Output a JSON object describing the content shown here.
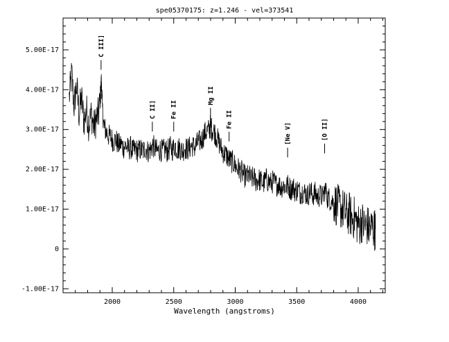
{
  "chart_data": {
    "type": "line",
    "title": "spe05370175: z=1.246 - vel=373541",
    "xlabel": "Wavelength (angstroms)",
    "ylabel": "",
    "xlim": [
      1600,
      4220
    ],
    "ylim": [
      -1.1e-17,
      5.8e-17
    ],
    "x_ticks": [
      2000,
      2500,
      3000,
      3500,
      4000
    ],
    "x_tick_labels": [
      "2000",
      "2500",
      "3000",
      "3500",
      "4000"
    ],
    "x_minor_step": 100,
    "y_ticks": [
      -1e-17,
      0,
      1e-17,
      2e-17,
      3e-17,
      4e-17,
      5e-17
    ],
    "y_tick_labels": [
      "-1.00E-17",
      "0",
      "1.00E-17",
      "2.00E-17",
      "3.00E-17",
      "4.00E-17",
      "5.00E-17"
    ],
    "y_minor_step": 2e-18,
    "grid": false,
    "series": [
      {
        "points": [
          [
            1650,
            3.8e-17
          ],
          [
            1670,
            4.4e-17
          ],
          [
            1690,
            3.6e-17
          ],
          [
            1710,
            4.1e-17
          ],
          [
            1730,
            3.4e-17
          ],
          [
            1750,
            3.8e-17
          ],
          [
            1770,
            3.2e-17
          ],
          [
            1790,
            3.5e-17
          ],
          [
            1810,
            3.1e-17
          ],
          [
            1830,
            3.4e-17
          ],
          [
            1850,
            3.05e-17
          ],
          [
            1870,
            3.25e-17
          ],
          [
            1890,
            3.4e-17
          ],
          [
            1905,
            3.9e-17
          ],
          [
            1912,
            4.25e-17
          ],
          [
            1920,
            3.5e-17
          ],
          [
            1935,
            3.05e-17
          ],
          [
            1950,
            2.95e-17
          ],
          [
            1970,
            2.85e-17
          ],
          [
            1990,
            2.8e-17
          ],
          [
            2010,
            2.7e-17
          ],
          [
            2030,
            2.75e-17
          ],
          [
            2050,
            2.6e-17
          ],
          [
            2070,
            2.65e-17
          ],
          [
            2090,
            2.55e-17
          ],
          [
            2110,
            2.6e-17
          ],
          [
            2130,
            2.5e-17
          ],
          [
            2150,
            2.55e-17
          ],
          [
            2170,
            2.45e-17
          ],
          [
            2190,
            2.5e-17
          ],
          [
            2210,
            2.45e-17
          ],
          [
            2230,
            2.5e-17
          ],
          [
            2250,
            2.45e-17
          ],
          [
            2270,
            2.55e-17
          ],
          [
            2290,
            2.45e-17
          ],
          [
            2310,
            2.5e-17
          ],
          [
            2330,
            2.6e-17
          ],
          [
            2350,
            2.5e-17
          ],
          [
            2370,
            2.45e-17
          ],
          [
            2390,
            2.5e-17
          ],
          [
            2410,
            2.45e-17
          ],
          [
            2430,
            2.5e-17
          ],
          [
            2450,
            2.45e-17
          ],
          [
            2470,
            2.55e-17
          ],
          [
            2490,
            2.5e-17
          ],
          [
            2510,
            2.6e-17
          ],
          [
            2530,
            2.5e-17
          ],
          [
            2550,
            2.55e-17
          ],
          [
            2570,
            2.45e-17
          ],
          [
            2590,
            2.55e-17
          ],
          [
            2610,
            2.5e-17
          ],
          [
            2630,
            2.55e-17
          ],
          [
            2650,
            2.6e-17
          ],
          [
            2670,
            2.55e-17
          ],
          [
            2690,
            2.65e-17
          ],
          [
            2710,
            2.7e-17
          ],
          [
            2730,
            2.75e-17
          ],
          [
            2750,
            2.9e-17
          ],
          [
            2770,
            2.95e-17
          ],
          [
            2790,
            3e-17
          ],
          [
            2800,
            3.1e-17
          ],
          [
            2810,
            3e-17
          ],
          [
            2830,
            2.95e-17
          ],
          [
            2850,
            2.8e-17
          ],
          [
            2870,
            2.65e-17
          ],
          [
            2890,
            2.5e-17
          ],
          [
            2910,
            2.4e-17
          ],
          [
            2930,
            2.35e-17
          ],
          [
            2950,
            2.25e-17
          ],
          [
            2970,
            2.2e-17
          ],
          [
            2990,
            2.15e-17
          ],
          [
            3010,
            2.05e-17
          ],
          [
            3030,
            2e-17
          ],
          [
            3050,
            1.95e-17
          ],
          [
            3070,
            1.85e-17
          ],
          [
            3090,
            1.8e-17
          ],
          [
            3110,
            1.85e-17
          ],
          [
            3130,
            1.75e-17
          ],
          [
            3150,
            1.8e-17
          ],
          [
            3170,
            1.7e-17
          ],
          [
            3190,
            1.75e-17
          ],
          [
            3210,
            1.7e-17
          ],
          [
            3230,
            1.65e-17
          ],
          [
            3250,
            1.75e-17
          ],
          [
            3270,
            1.7e-17
          ],
          [
            3290,
            1.65e-17
          ],
          [
            3310,
            1.7e-17
          ],
          [
            3330,
            1.6e-17
          ],
          [
            3350,
            1.65e-17
          ],
          [
            3370,
            1.55e-17
          ],
          [
            3390,
            1.6e-17
          ],
          [
            3410,
            1.55e-17
          ],
          [
            3430,
            1.6e-17
          ],
          [
            3450,
            1.5e-17
          ],
          [
            3470,
            1.55e-17
          ],
          [
            3490,
            1.45e-17
          ],
          [
            3510,
            1.5e-17
          ],
          [
            3530,
            1.4e-17
          ],
          [
            3550,
            1.45e-17
          ],
          [
            3570,
            1.4e-17
          ],
          [
            3590,
            1.35e-17
          ],
          [
            3610,
            1.45e-17
          ],
          [
            3630,
            1.35e-17
          ],
          [
            3650,
            1.4e-17
          ],
          [
            3670,
            1.3e-17
          ],
          [
            3690,
            1.35e-17
          ],
          [
            3710,
            1.3e-17
          ],
          [
            3730,
            1.5e-17
          ],
          [
            3750,
            1.3e-17
          ],
          [
            3770,
            1.25e-17
          ],
          [
            3790,
            1.2e-17
          ],
          [
            3810,
            1.15e-17
          ],
          [
            3830,
            1.1e-17
          ],
          [
            3850,
            1.05e-17
          ],
          [
            3870,
            1e-17
          ],
          [
            3890,
            9.5e-18
          ],
          [
            3910,
            8.5e-18
          ],
          [
            3930,
            9e-18
          ],
          [
            3950,
            7.5e-18
          ],
          [
            3970,
            8e-18
          ],
          [
            3990,
            6.5e-18
          ],
          [
            4010,
            6e-18
          ],
          [
            4030,
            7e-18
          ],
          [
            4050,
            5.5e-18
          ],
          [
            4070,
            6e-18
          ],
          [
            4090,
            5e-18
          ],
          [
            4110,
            5.5e-18
          ],
          [
            4130,
            5e-18
          ],
          [
            4140,
            5e-18
          ]
        ]
      }
    ],
    "annotations": [
      {
        "label": "C III]",
        "wavelength": 1909,
        "flux": 4.5e-17
      },
      {
        "label": "C II]",
        "wavelength": 2326,
        "flux": 2.95e-17
      },
      {
        "label": "Fe II",
        "wavelength": 2500,
        "flux": 2.95e-17
      },
      {
        "label": "Mg II",
        "wavelength": 2799,
        "flux": 3.3e-17
      },
      {
        "label": "Fe II",
        "wavelength": 2950,
        "flux": 2.7e-17
      },
      {
        "label": "[Ne V]",
        "wavelength": 3426,
        "flux": 2.3e-17
      },
      {
        "label": "[O II]",
        "wavelength": 3727,
        "flux": 2.4e-17
      }
    ]
  }
}
